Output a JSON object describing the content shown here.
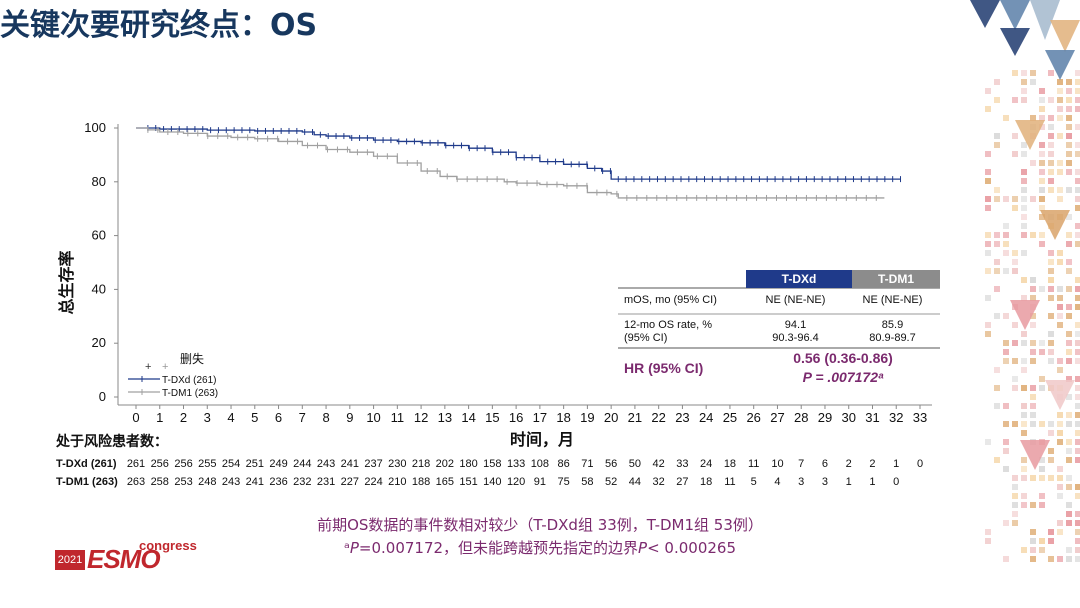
{
  "slide": {
    "title": "关键次要研究终点：OS",
    "footnote_line1": "前期OS数据的事件数相对较少（T-DXd组 33例，T-DM1组 53例）",
    "footnote_line2_prefix": "ᵃ",
    "footnote_line2_p": "P",
    "footnote_line2_mid": "=0.007172，但未能跨越预先指定的边界",
    "footnote_line2_p2": "P",
    "footnote_line2_suffix": "< 0.000265"
  },
  "logo": {
    "year": "2021",
    "brand": "ESMO",
    "suffix": "congress",
    "color": "#c0272d"
  },
  "stats_table": {
    "col_headers": [
      "T-DXd",
      "T-DM1"
    ],
    "col_colors": [
      "#1f3a8a",
      "#8c8c8c"
    ],
    "rows": [
      {
        "label": "mOS, mo (95% CI)",
        "values": [
          "NE (NE-NE)",
          "NE (NE-NE)"
        ]
      },
      {
        "label_line1": "12-mo OS rate, %",
        "label_line2": "(95% CI)",
        "values_line1": [
          "94.1",
          "85.9"
        ],
        "values_line2": [
          "90.3-96.4",
          "80.9-89.7"
        ]
      }
    ],
    "hr_label": "HR (95% CI)",
    "hr_value": "0.56 (0.36-0.86)",
    "p_value": "P = .007172ᵃ"
  },
  "chart_data": {
    "type": "line",
    "title": "",
    "xlabel": "时间，月",
    "ylabel": "总生存率",
    "xlim": [
      0,
      33
    ],
    "ylim": [
      0,
      100
    ],
    "x_ticks": [
      0,
      1,
      2,
      3,
      4,
      5,
      6,
      7,
      8,
      9,
      10,
      11,
      12,
      13,
      14,
      15,
      16,
      17,
      18,
      19,
      20,
      21,
      22,
      23,
      24,
      25,
      26,
      27,
      28,
      29,
      30,
      31,
      32,
      33
    ],
    "y_ticks": [
      0,
      20,
      40,
      60,
      80,
      100
    ],
    "legend": {
      "title": "删失",
      "position": "bottom-left",
      "entries": [
        "T-DXd (261)",
        "T-DM1 (263)"
      ]
    },
    "series": [
      {
        "name": "T-DXd (261)",
        "color": "#1f3a8a",
        "points": [
          [
            0,
            100
          ],
          [
            0.3,
            100
          ],
          [
            1,
            99.6
          ],
          [
            2,
            99.6
          ],
          [
            3,
            99.2
          ],
          [
            4,
            99.2
          ],
          [
            5,
            98.9
          ],
          [
            6,
            98.9
          ],
          [
            7,
            98.5
          ],
          [
            7.5,
            97.5
          ],
          [
            8,
            97
          ],
          [
            9,
            96.3
          ],
          [
            10,
            95.5
          ],
          [
            11,
            95
          ],
          [
            12,
            94.5
          ],
          [
            13,
            93.5
          ],
          [
            14,
            92.5
          ],
          [
            15,
            91
          ],
          [
            16,
            89
          ],
          [
            17,
            87.5
          ],
          [
            18,
            86.5
          ],
          [
            19,
            85
          ],
          [
            19.6,
            84
          ],
          [
            20,
            81
          ],
          [
            21,
            81
          ],
          [
            25,
            81
          ],
          [
            30,
            81
          ],
          [
            32.2,
            81
          ]
        ]
      },
      {
        "name": "T-DM1 (263)",
        "color": "#a0a0a0",
        "points": [
          [
            0,
            100
          ],
          [
            0.5,
            99.3
          ],
          [
            1,
            98.5
          ],
          [
            2,
            98
          ],
          [
            3,
            97
          ],
          [
            4,
            96.5
          ],
          [
            5,
            96
          ],
          [
            6,
            95
          ],
          [
            7,
            93.5
          ],
          [
            8,
            92
          ],
          [
            9,
            91
          ],
          [
            10,
            89.5
          ],
          [
            11,
            87
          ],
          [
            12,
            84
          ],
          [
            12.8,
            82
          ],
          [
            13.5,
            81
          ],
          [
            15,
            81
          ],
          [
            15.5,
            80
          ],
          [
            16,
            79.5
          ],
          [
            17,
            79
          ],
          [
            18,
            78.5
          ],
          [
            19,
            76
          ],
          [
            20,
            75.5
          ],
          [
            20.3,
            74
          ],
          [
            22,
            74
          ],
          [
            25,
            74
          ],
          [
            30,
            74
          ],
          [
            31.5,
            74
          ]
        ]
      }
    ]
  },
  "at_risk": {
    "header": "处于风险患者数：",
    "rows": [
      {
        "label": "T-DXd (261)",
        "values": [
          "261",
          "256",
          "256",
          "255",
          "254",
          "251",
          "249",
          "244",
          "243",
          "241",
          "237",
          "230",
          "218",
          "202",
          "180",
          "158",
          "133",
          "108",
          "86",
          "71",
          "56",
          "50",
          "42",
          "33",
          "24",
          "18",
          "11",
          "10",
          "7",
          "6",
          "2",
          "2",
          "1",
          "0"
        ]
      },
      {
        "label": "T-DM1 (263)",
        "values": [
          "263",
          "258",
          "253",
          "248",
          "243",
          "241",
          "236",
          "232",
          "231",
          "227",
          "224",
          "210",
          "188",
          "165",
          "151",
          "140",
          "120",
          "91",
          "75",
          "58",
          "52",
          "44",
          "32",
          "27",
          "18",
          "11",
          "5",
          "4",
          "3",
          "3",
          "1",
          "1",
          "0"
        ]
      }
    ]
  }
}
